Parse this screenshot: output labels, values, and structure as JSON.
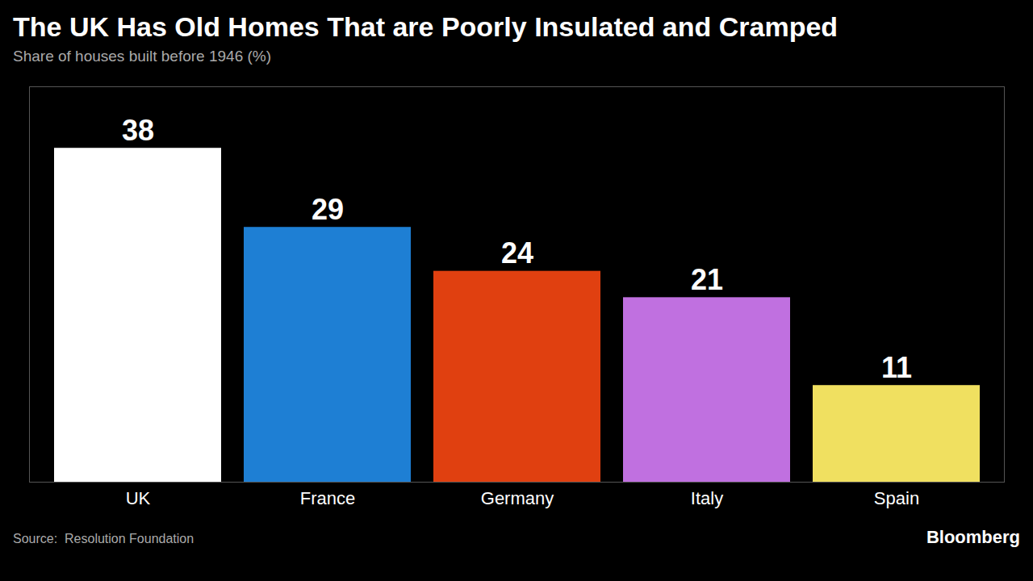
{
  "chart_data": {
    "type": "bar",
    "title": "The UK Has Old Homes That are Poorly Insulated and Cramped",
    "subtitle": "Share of houses built before 1946 (%)",
    "source": "Source:  Resolution Foundation",
    "annotations": [
      "Bloomberg"
    ],
    "categories": [
      "UK",
      "France",
      "Germany",
      "Italy",
      "Spain"
    ],
    "values": [
      38,
      29,
      24,
      21,
      11
    ],
    "colors": [
      "#ffffff",
      "#1e7fd4",
      "#e04010",
      "#c070e0",
      "#f0e060"
    ],
    "ylim": [
      0,
      45
    ],
    "data_labels": true,
    "tick_labels": "x",
    "grid": false
  }
}
